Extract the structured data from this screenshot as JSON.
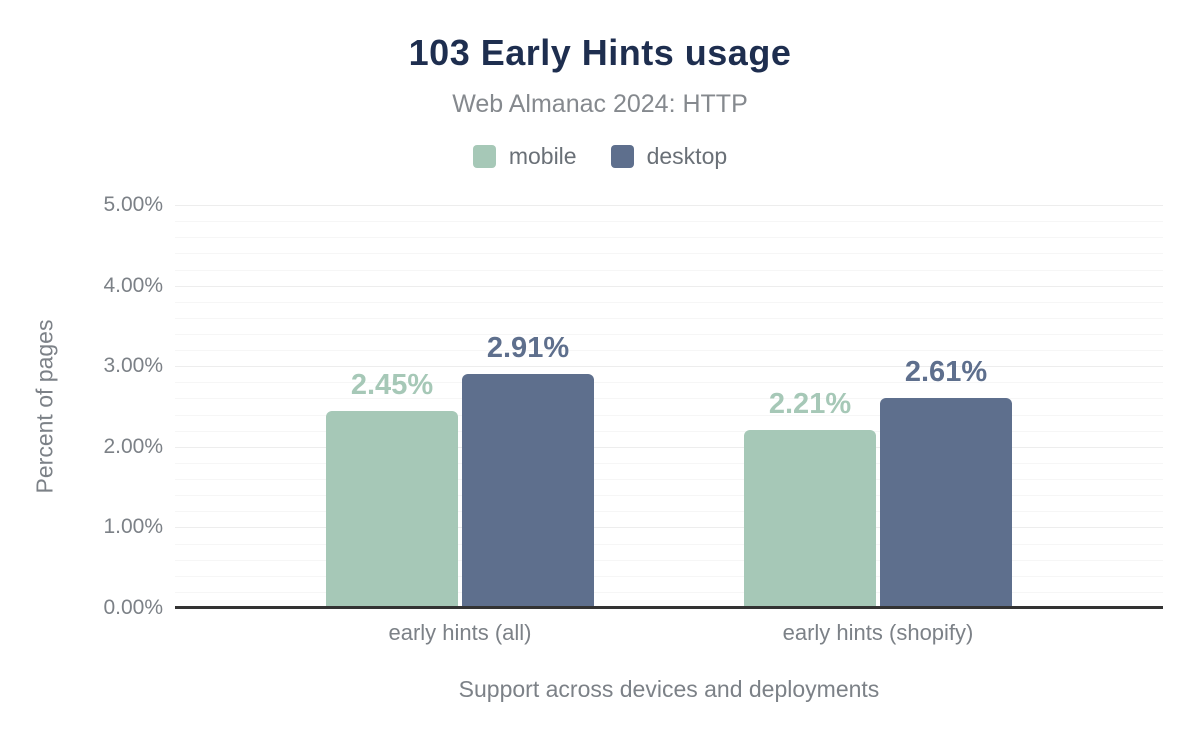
{
  "chart_data": {
    "type": "bar",
    "title": "103 Early Hints usage",
    "subtitle": "Web Almanac 2024: HTTP",
    "categories": [
      "early hints (all)",
      "early hints (shopify)"
    ],
    "series": [
      {
        "name": "mobile",
        "color": "#a6c8b7",
        "values": [
          2.45,
          2.21
        ],
        "value_labels": [
          "2.45%",
          "2.21%"
        ]
      },
      {
        "name": "desktop",
        "color": "#5e6f8d",
        "values": [
          2.91,
          2.61
        ],
        "value_labels": [
          "2.91%",
          "2.61%"
        ]
      }
    ],
    "xlabel": "Support across devices and deployments",
    "ylabel": "Percent of pages",
    "ylim": [
      0,
      5
    ],
    "y_major_step": 1,
    "y_minor_step": 0.2,
    "y_tick_labels": [
      "0.00%",
      "1.00%",
      "2.00%",
      "3.00%",
      "4.00%",
      "5.00%"
    ],
    "grid": true,
    "legend_position": "top"
  },
  "colors": {
    "title_text": "#1e2e4f",
    "subtitle_text": "#85898e",
    "axis_text": "#7c8187",
    "baseline": "#333333",
    "grid_major": "#ededed",
    "grid_minor": "#f6f6f6"
  }
}
